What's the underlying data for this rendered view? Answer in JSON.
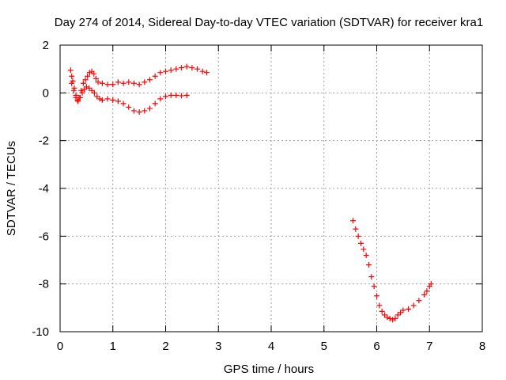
{
  "chart_data": {
    "type": "scatter",
    "title": "Day 274 of 2014, Sidereal Day-to-day VTEC variation (SDTVAR) for receiver kra1",
    "xlabel": "GPS time / hours",
    "ylabel": "SDTVAR / TECUs",
    "xlim": [
      0,
      8
    ],
    "ylim": [
      -10,
      2
    ],
    "xticks": [
      0,
      1,
      2,
      3,
      4,
      5,
      6,
      7,
      8
    ],
    "yticks": [
      2,
      0,
      -2,
      -4,
      -6,
      -8,
      -10
    ],
    "grid": true,
    "legend": "none",
    "marker": "plus",
    "color": "#ff0000",
    "series": [
      {
        "points": [
          [
            0.2,
            0.95
          ],
          [
            0.22,
            0.7
          ],
          [
            0.24,
            0.5
          ],
          [
            0.27,
            0.2
          ],
          [
            0.3,
            -0.1
          ],
          [
            0.33,
            -0.3
          ],
          [
            0.36,
            -0.2
          ],
          [
            0.4,
            0.1
          ],
          [
            0.44,
            0.4
          ],
          [
            0.48,
            0.55
          ],
          [
            0.52,
            0.7
          ],
          [
            0.56,
            0.85
          ],
          [
            0.6,
            0.9
          ],
          [
            0.64,
            0.8
          ],
          [
            0.68,
            0.6
          ],
          [
            0.72,
            0.45
          ],
          [
            0.8,
            0.4
          ],
          [
            0.9,
            0.35
          ],
          [
            1.0,
            0.35
          ],
          [
            1.1,
            0.45
          ],
          [
            1.2,
            0.4
          ],
          [
            1.3,
            0.45
          ],
          [
            1.4,
            0.4
          ],
          [
            1.5,
            0.35
          ],
          [
            1.6,
            0.45
          ],
          [
            1.7,
            0.55
          ],
          [
            1.8,
            0.7
          ],
          [
            1.9,
            0.85
          ],
          [
            2.0,
            0.9
          ],
          [
            2.1,
            0.95
          ],
          [
            2.2,
            1.0
          ],
          [
            2.3,
            1.05
          ],
          [
            2.4,
            1.1
          ],
          [
            2.5,
            1.05
          ],
          [
            2.6,
            1.0
          ],
          [
            2.7,
            0.9
          ],
          [
            2.78,
            0.85
          ]
        ]
      },
      {
        "points": [
          [
            0.22,
            0.4
          ],
          [
            0.26,
            0.1
          ],
          [
            0.3,
            -0.2
          ],
          [
            0.34,
            -0.35
          ],
          [
            0.38,
            -0.2
          ],
          [
            0.42,
            0.0
          ],
          [
            0.46,
            0.15
          ],
          [
            0.5,
            0.25
          ],
          [
            0.55,
            0.2
          ],
          [
            0.6,
            0.1
          ],
          [
            0.65,
            0.0
          ],
          [
            0.7,
            -0.15
          ],
          [
            0.75,
            -0.25
          ],
          [
            0.8,
            -0.3
          ],
          [
            0.9,
            -0.25
          ],
          [
            1.0,
            -0.3
          ],
          [
            1.1,
            -0.35
          ],
          [
            1.2,
            -0.45
          ],
          [
            1.3,
            -0.6
          ],
          [
            1.4,
            -0.75
          ],
          [
            1.5,
            -0.8
          ],
          [
            1.6,
            -0.75
          ],
          [
            1.7,
            -0.65
          ],
          [
            1.8,
            -0.45
          ],
          [
            1.9,
            -0.25
          ],
          [
            2.0,
            -0.15
          ],
          [
            2.1,
            -0.1
          ],
          [
            2.2,
            -0.1
          ],
          [
            2.3,
            -0.12
          ],
          [
            2.4,
            -0.1
          ]
        ]
      },
      {
        "points": [
          [
            5.55,
            -5.35
          ],
          [
            5.6,
            -5.7
          ],
          [
            5.65,
            -6.0
          ],
          [
            5.7,
            -6.3
          ],
          [
            5.75,
            -6.55
          ],
          [
            5.8,
            -6.8
          ],
          [
            5.85,
            -7.2
          ],
          [
            5.9,
            -7.7
          ],
          [
            5.95,
            -8.1
          ],
          [
            6.0,
            -8.5
          ],
          [
            6.05,
            -8.9
          ],
          [
            6.1,
            -9.15
          ],
          [
            6.15,
            -9.3
          ],
          [
            6.2,
            -9.4
          ],
          [
            6.25,
            -9.45
          ],
          [
            6.3,
            -9.5
          ],
          [
            6.35,
            -9.45
          ],
          [
            6.4,
            -9.3
          ],
          [
            6.45,
            -9.2
          ],
          [
            6.5,
            -9.1
          ],
          [
            6.6,
            -9.05
          ],
          [
            6.7,
            -8.9
          ],
          [
            6.8,
            -8.7
          ],
          [
            6.9,
            -8.45
          ],
          [
            6.95,
            -8.3
          ],
          [
            7.0,
            -8.1
          ],
          [
            7.03,
            -8.0
          ]
        ]
      }
    ]
  }
}
